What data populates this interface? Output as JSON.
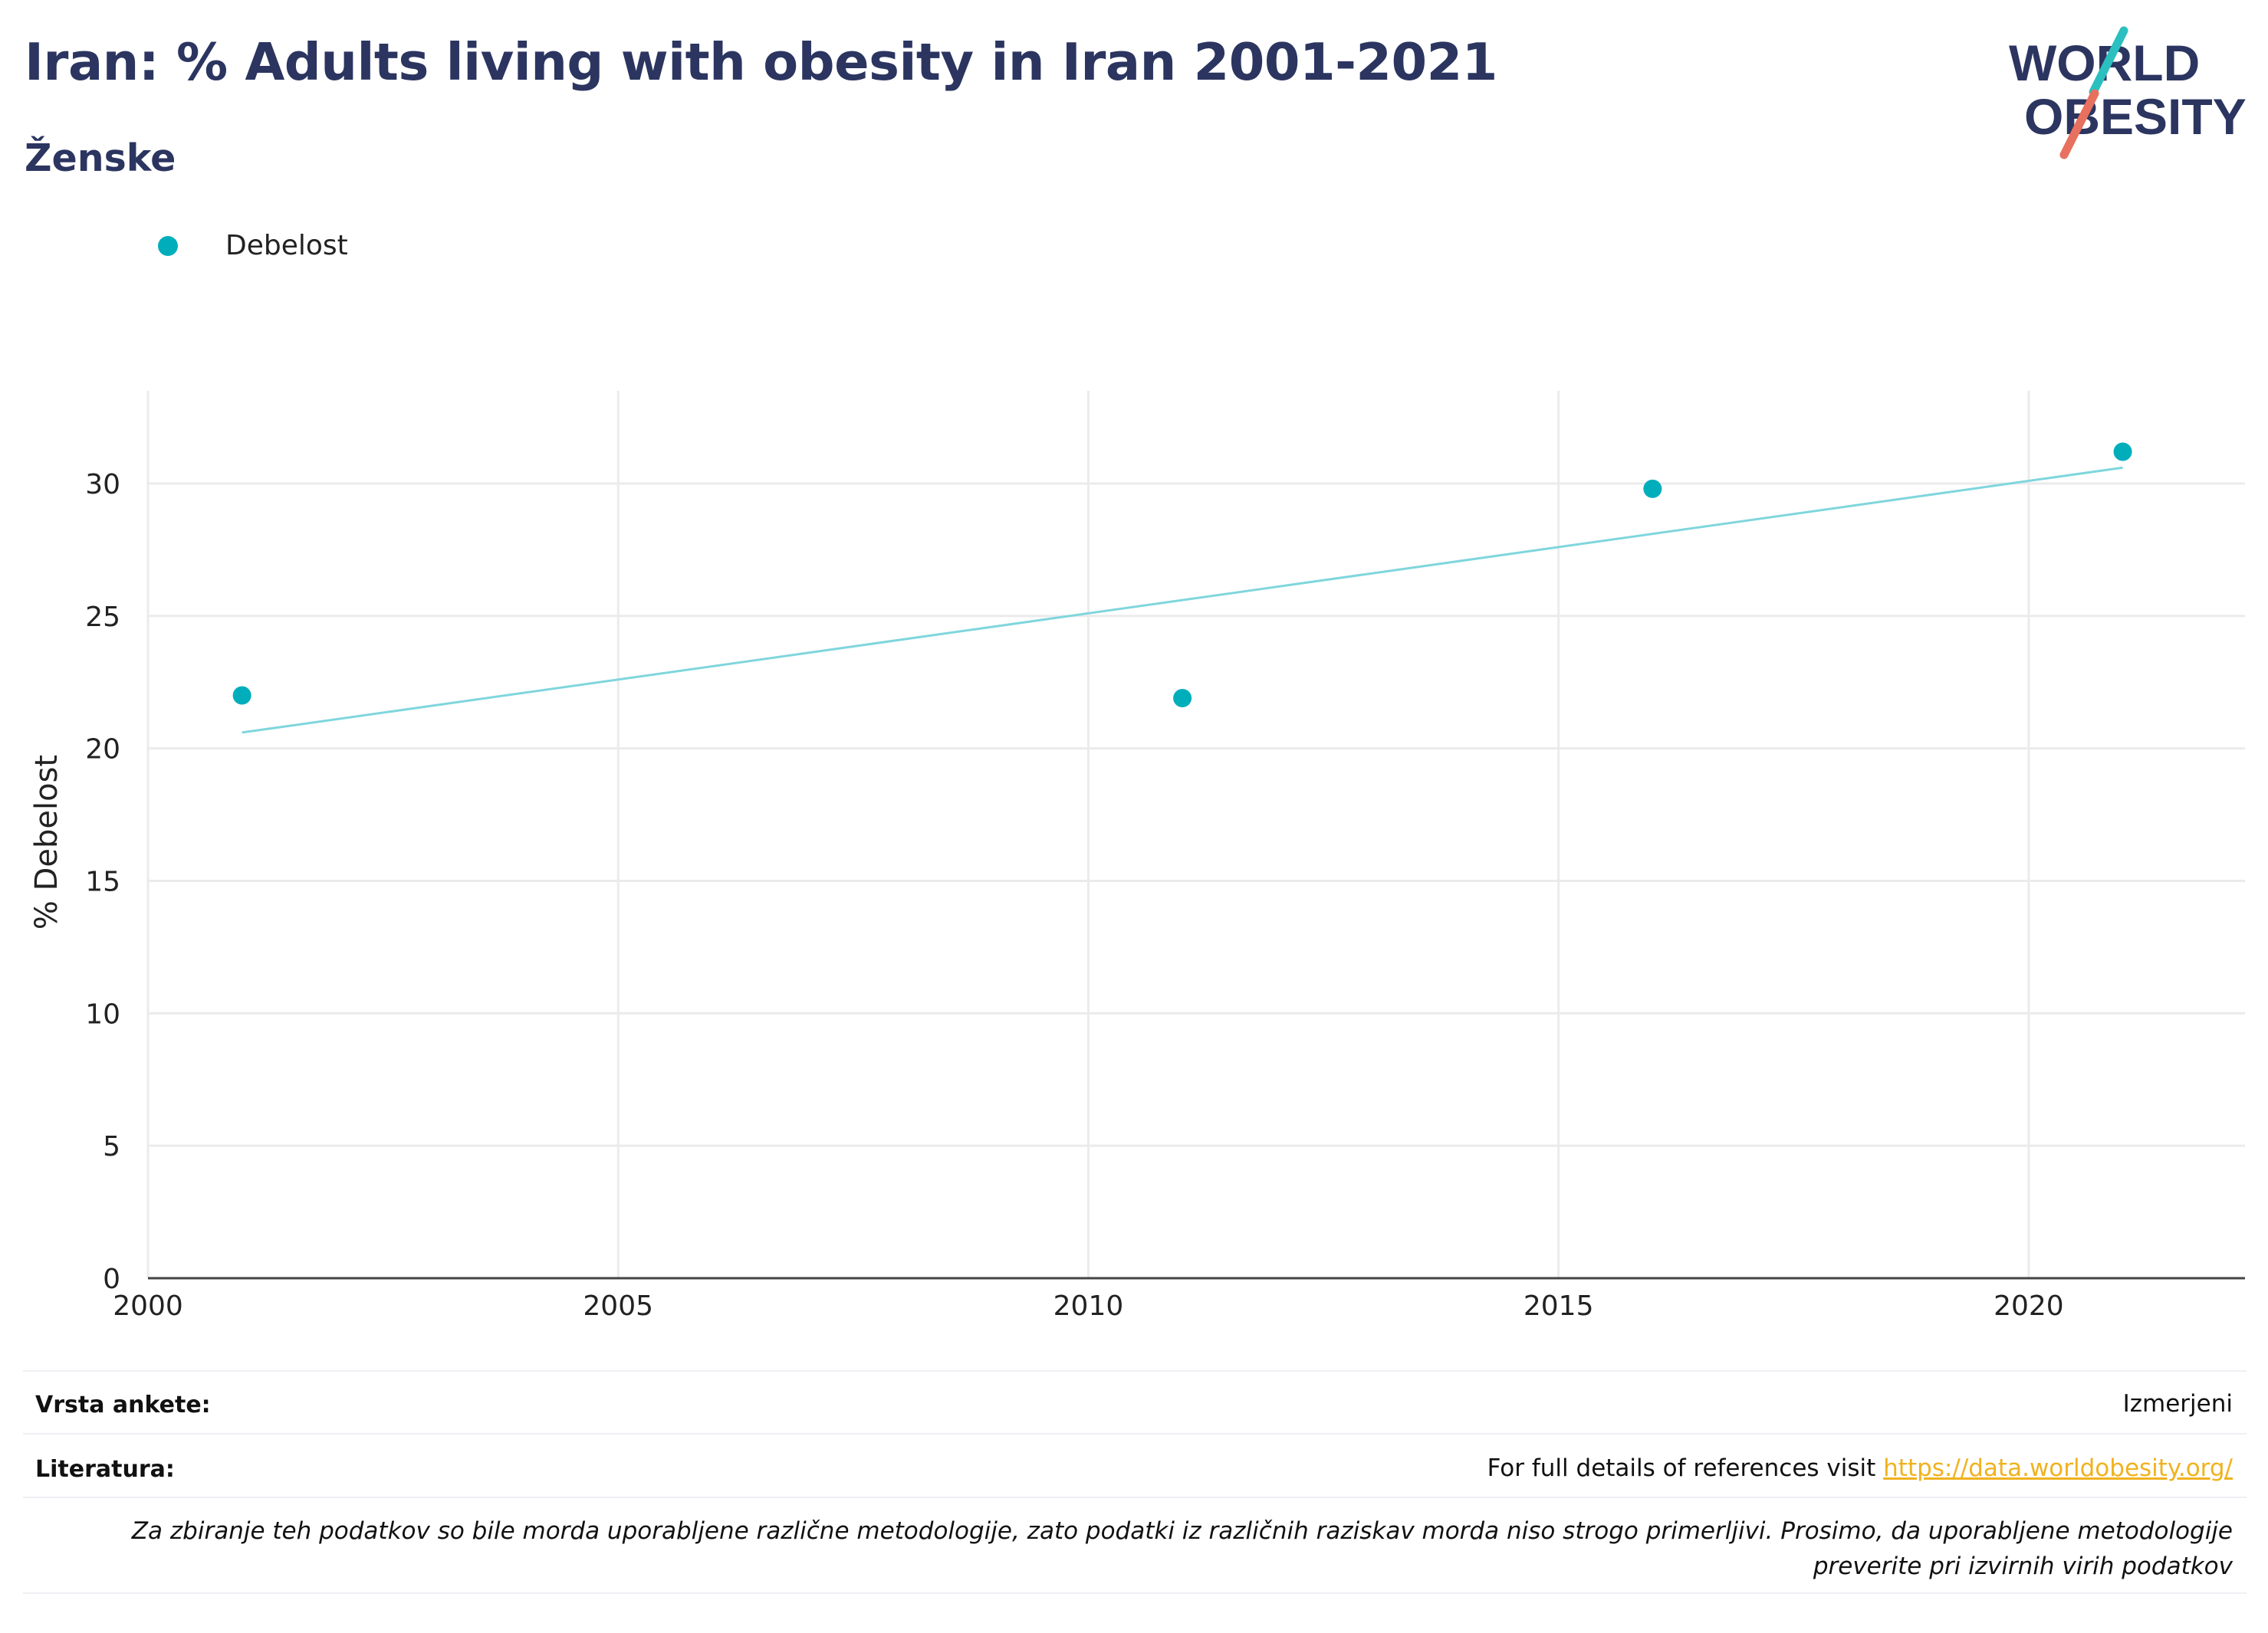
{
  "header": {
    "title": "Iran: % Adults living with obesity in Iran 2001-2021",
    "subtitle": "Ženske"
  },
  "logo": {
    "line1": "WORLD",
    "line2": "OBESITY",
    "colors": {
      "text": "#2b3560",
      "teal": "#2bbfbf",
      "coral": "#e8705e"
    }
  },
  "legend": {
    "label": "Debelost",
    "color": "#00aebb"
  },
  "chart_data": {
    "type": "scatter",
    "xlabel": "",
    "ylabel": "% Debelost",
    "xlim": [
      2000,
      2022.3
    ],
    "ylim": [
      0,
      33.5
    ],
    "xticks": [
      2000,
      2005,
      2010,
      2015,
      2020
    ],
    "yticks": [
      0,
      5,
      10,
      15,
      20,
      25,
      30
    ],
    "grid": true,
    "legend_position": "top-left",
    "series": [
      {
        "name": "Debelost",
        "color": "#00aebb",
        "points": [
          {
            "x": 2001,
            "y": 22.0
          },
          {
            "x": 2011,
            "y": 21.9
          },
          {
            "x": 2016,
            "y": 29.8
          },
          {
            "x": 2021,
            "y": 31.2
          }
        ]
      }
    ],
    "trendline": {
      "color": "#7fd6dc",
      "start": {
        "x": 2001,
        "y": 20.6
      },
      "end": {
        "x": 2021,
        "y": 30.6
      }
    }
  },
  "footer": {
    "survey_label": "Vrsta ankete:",
    "survey_value": "Izmerjeni",
    "references_label": "Literatura:",
    "references_text": "For full details of references visit ",
    "references_link": "https://data.worldobesity.org/",
    "note": "Za zbiranje teh podatkov so bile morda uporabljene različne metodologije, zato podatki iz različnih raziskav morda niso strogo primerljivi. Prosimo, da uporabljene metodologije preverite pri izvirnih virih podatkov"
  }
}
